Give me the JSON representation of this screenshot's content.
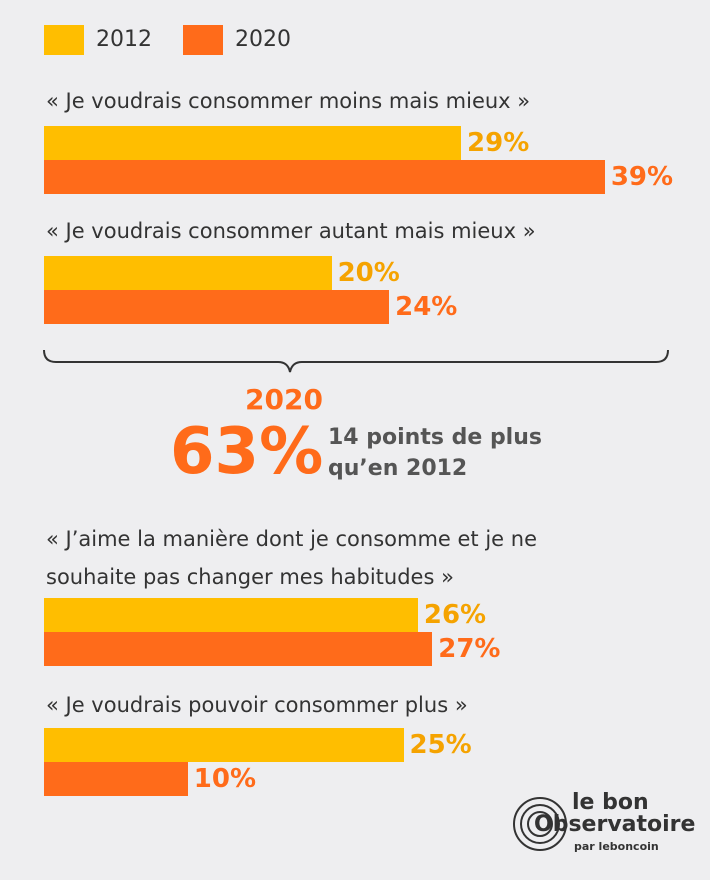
{
  "chart_data": {
    "type": "bar",
    "orientation": "horizontal",
    "categories": [
      "« Je voudrais consommer moins mais mieux »",
      "« Je voudrais consommer autant mais mieux »",
      "« J’aime la manière dont je consomme et je ne\nsouhaite pas changer mes habitudes »",
      "« Je voudrais pouvoir consommer plus »"
    ],
    "series": [
      {
        "name": "2012",
        "color": "#ffbe00",
        "values": [
          29,
          20,
          26,
          25
        ],
        "value_labels": [
          "29%",
          "20%",
          "26%",
          "25%"
        ]
      },
      {
        "name": "2020",
        "color": "#ff6b1a",
        "values": [
          39,
          24,
          27,
          10
        ],
        "value_labels": [
          "39%",
          "24%",
          "27%",
          "10%"
        ]
      }
    ],
    "annotation": {
      "year": "2020",
      "value": "63%",
      "text": "14 points de plus\nqu’en 2012"
    },
    "logo": {
      "line1": "le bon",
      "line2": "Observatoire",
      "line3": "par leboncoin"
    }
  }
}
